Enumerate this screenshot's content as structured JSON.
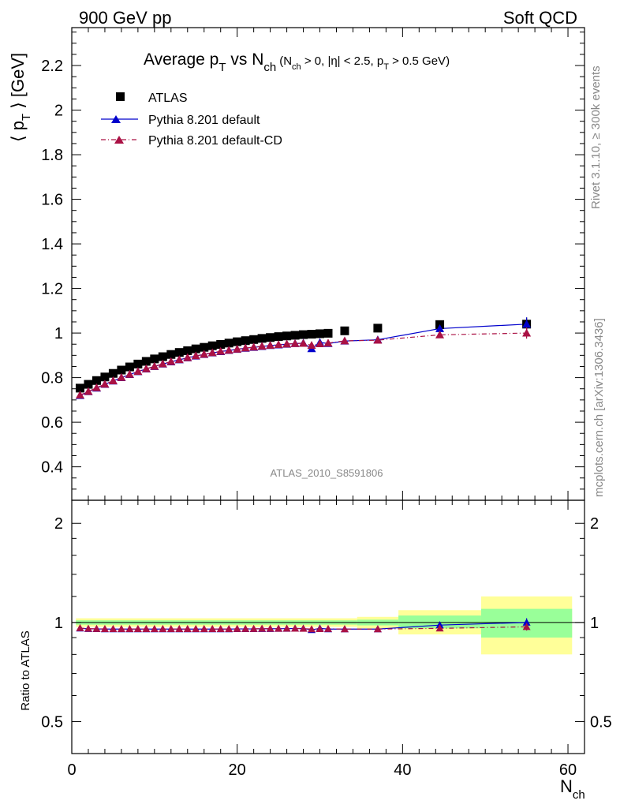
{
  "header": {
    "left": "900 GeV pp",
    "right": "Soft QCD"
  },
  "side": {
    "top": "Rivet 3.1.10, ≥ 300k events",
    "bottom": "mcplots.cern.ch [arXiv:1306.3436]"
  },
  "watermark": "ATLAS_2010_S8591806",
  "title": {
    "main": "Average p",
    "main_sub": "T",
    "vs": " vs N",
    "vs_sub": "ch",
    "cond": "(N",
    "cond_sub1": "ch",
    "cond_mid": " > 0, |η| < 2.5, p",
    "cond_sub2": "T",
    "cond_end": " > 0.5 GeV)"
  },
  "axes": {
    "ylabel_pre": "⟨ p",
    "ylabel_sub": "T",
    "ylabel_post": " ⟩ [GeV]",
    "ratio_ylabel": "Ratio to ATLAS",
    "xlabel": "N",
    "xlabel_sub": "ch"
  },
  "colors": {
    "data": "#000000",
    "default": "#0000cc",
    "cd": "#aa1144",
    "band_inner": "#99ff99",
    "band_outer": "#ffff99"
  },
  "chart_data": {
    "type": "scatter",
    "xlim": [
      0,
      62
    ],
    "ylim": [
      0.25,
      2.37
    ],
    "ratio_ylim": [
      0.4,
      2.35
    ],
    "ratio_scale": "log",
    "x_ticks": [
      0,
      20,
      40,
      60
    ],
    "y_ticks": [
      0.4,
      0.6,
      0.8,
      1,
      1.2,
      1.4,
      1.6,
      1.8,
      2,
      2.2
    ],
    "ratio_ticks": [
      0.5,
      1,
      2
    ],
    "legend_position": "top-left",
    "series": [
      {
        "name": "ATLAS",
        "marker": "square",
        "x": [
          1,
          2,
          3,
          4,
          5,
          6,
          7,
          8,
          9,
          10,
          11,
          12,
          13,
          14,
          15,
          16,
          17,
          18,
          19,
          20,
          21,
          22,
          23,
          24,
          25,
          26,
          27,
          28,
          29,
          30,
          31,
          33,
          37,
          44.5,
          55
        ],
        "y": [
          0.753,
          0.77,
          0.787,
          0.803,
          0.819,
          0.834,
          0.848,
          0.861,
          0.873,
          0.884,
          0.894,
          0.904,
          0.913,
          0.921,
          0.929,
          0.936,
          0.943,
          0.949,
          0.955,
          0.961,
          0.966,
          0.971,
          0.976,
          0.98,
          0.984,
          0.987,
          0.99,
          0.993,
          0.995,
          0.997,
          0.999,
          1.01,
          1.022,
          1.038,
          1.04
        ],
        "yerr": [
          0,
          0,
          0,
          0,
          0,
          0,
          0,
          0,
          0,
          0,
          0,
          0,
          0,
          0,
          0,
          0,
          0,
          0,
          0,
          0,
          0,
          0,
          0,
          0,
          0,
          0,
          0,
          0,
          0,
          0,
          0,
          0,
          0,
          0,
          0.03
        ]
      },
      {
        "name": "Pythia 8.201 default",
        "marker": "triangle",
        "line": "solid",
        "x": [
          1,
          2,
          3,
          4,
          5,
          6,
          7,
          8,
          9,
          10,
          11,
          12,
          13,
          14,
          15,
          16,
          17,
          18,
          19,
          20,
          21,
          22,
          23,
          24,
          25,
          26,
          27,
          28,
          29,
          30,
          31,
          33,
          37,
          44.5,
          55
        ],
        "y": [
          0.72,
          0.737,
          0.753,
          0.77,
          0.785,
          0.8,
          0.814,
          0.827,
          0.839,
          0.85,
          0.861,
          0.871,
          0.88,
          0.889,
          0.897,
          0.904,
          0.911,
          0.917,
          0.922,
          0.927,
          0.932,
          0.936,
          0.94,
          0.944,
          0.947,
          0.95,
          0.953,
          0.955,
          0.93,
          0.958,
          0.953,
          0.964,
          0.97,
          1.02,
          1.04
        ],
        "yerr": [
          0,
          0,
          0,
          0,
          0,
          0,
          0,
          0,
          0,
          0,
          0,
          0,
          0,
          0,
          0,
          0,
          0,
          0,
          0,
          0,
          0,
          0,
          0,
          0,
          0,
          0,
          0,
          0,
          0,
          0,
          0,
          0,
          0,
          0,
          0.03
        ]
      },
      {
        "name": "Pythia 8.201 default-CD",
        "marker": "triangle",
        "line": "dashdot",
        "x": [
          1,
          2,
          3,
          4,
          5,
          6,
          7,
          8,
          9,
          10,
          11,
          12,
          13,
          14,
          15,
          16,
          17,
          18,
          19,
          20,
          21,
          22,
          23,
          24,
          25,
          26,
          27,
          28,
          29,
          30,
          31,
          33,
          37,
          44.5,
          55
        ],
        "y": [
          0.722,
          0.738,
          0.755,
          0.771,
          0.786,
          0.801,
          0.815,
          0.828,
          0.84,
          0.851,
          0.862,
          0.872,
          0.881,
          0.89,
          0.898,
          0.905,
          0.912,
          0.918,
          0.923,
          0.928,
          0.933,
          0.937,
          0.941,
          0.945,
          0.948,
          0.951,
          0.953,
          0.954,
          0.945,
          0.952,
          0.955,
          0.965,
          0.968,
          0.992,
          1.0
        ],
        "yerr": [
          0,
          0,
          0,
          0,
          0,
          0,
          0,
          0,
          0,
          0,
          0,
          0,
          0,
          0,
          0,
          0,
          0,
          0,
          0,
          0,
          0,
          0,
          0,
          0,
          0,
          0,
          0,
          0,
          0,
          0,
          0,
          0,
          0,
          0,
          0.025
        ]
      }
    ],
    "ratio_series": [
      {
        "name": "Pythia 8.201 default",
        "x": [
          1,
          2,
          3,
          4,
          5,
          6,
          7,
          8,
          9,
          10,
          11,
          12,
          13,
          14,
          15,
          16,
          17,
          18,
          19,
          20,
          21,
          22,
          23,
          24,
          25,
          26,
          27,
          28,
          29,
          30,
          31,
          33,
          37,
          44.5,
          55
        ],
        "y": [
          0.96,
          0.957,
          0.956,
          0.955,
          0.955,
          0.955,
          0.955,
          0.955,
          0.955,
          0.955,
          0.955,
          0.955,
          0.955,
          0.955,
          0.955,
          0.955,
          0.955,
          0.955,
          0.955,
          0.956,
          0.956,
          0.956,
          0.957,
          0.957,
          0.958,
          0.958,
          0.959,
          0.959,
          0.95,
          0.96,
          0.955,
          0.955,
          0.955,
          0.982,
          1.0
        ],
        "yerr": [
          0,
          0,
          0,
          0,
          0,
          0,
          0,
          0,
          0,
          0,
          0,
          0,
          0,
          0,
          0,
          0,
          0,
          0,
          0,
          0,
          0,
          0,
          0,
          0,
          0,
          0,
          0,
          0,
          0,
          0,
          0,
          0,
          0,
          0,
          0.03
        ]
      },
      {
        "name": "Pythia 8.201 default-CD",
        "x": [
          1,
          2,
          3,
          4,
          5,
          6,
          7,
          8,
          9,
          10,
          11,
          12,
          13,
          14,
          15,
          16,
          17,
          18,
          19,
          20,
          21,
          22,
          23,
          24,
          25,
          26,
          27,
          28,
          29,
          30,
          31,
          33,
          37,
          44.5,
          55
        ],
        "y": [
          0.962,
          0.958,
          0.957,
          0.956,
          0.956,
          0.956,
          0.956,
          0.956,
          0.956,
          0.956,
          0.956,
          0.956,
          0.956,
          0.956,
          0.956,
          0.956,
          0.956,
          0.956,
          0.956,
          0.957,
          0.957,
          0.957,
          0.958,
          0.958,
          0.958,
          0.959,
          0.959,
          0.958,
          0.955,
          0.956,
          0.957,
          0.955,
          0.955,
          0.96,
          0.97
        ],
        "yerr": [
          0,
          0,
          0,
          0,
          0,
          0,
          0,
          0,
          0,
          0,
          0,
          0,
          0,
          0,
          0,
          0,
          0,
          0,
          0,
          0,
          0,
          0,
          0,
          0,
          0,
          0,
          0,
          0,
          0,
          0,
          0,
          0,
          0,
          0,
          0.025
        ]
      }
    ],
    "ratio_bands": [
      {
        "x0": 0.5,
        "x1": 34.5,
        "inner": [
          0.985,
          1.015
        ],
        "outer": [
          0.97,
          1.03
        ]
      },
      {
        "x0": 34.5,
        "x1": 39.5,
        "inner": [
          0.98,
          1.02
        ],
        "outer": [
          0.96,
          1.04
        ]
      },
      {
        "x0": 39.5,
        "x1": 49.5,
        "inner": [
          0.96,
          1.05
        ],
        "outer": [
          0.92,
          1.09
        ]
      },
      {
        "x0": 49.5,
        "x1": 60.5,
        "inner": [
          0.9,
          1.1
        ],
        "outer": [
          0.8,
          1.2
        ]
      }
    ]
  }
}
